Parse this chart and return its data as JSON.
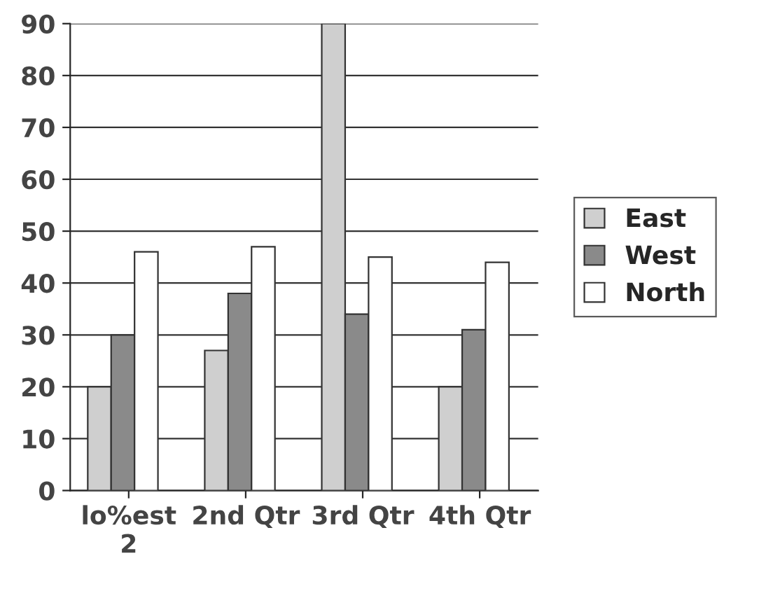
{
  "chart_data": {
    "type": "bar",
    "categories": [
      "lo%est\n2",
      "2nd Qtr",
      "3rd Qtr",
      "4th Qtr"
    ],
    "series": [
      {
        "name": "East",
        "color": "#cfcfcf",
        "values": [
          20,
          27,
          90,
          20
        ]
      },
      {
        "name": "West",
        "color": "#8a8a8a",
        "values": [
          30,
          38,
          34,
          31
        ]
      },
      {
        "name": "North",
        "color": "#ffffff",
        "values": [
          46,
          47,
          45,
          44
        ]
      }
    ],
    "ylim": [
      0,
      90
    ],
    "yticks": [
      0,
      10,
      20,
      30,
      40,
      50,
      60,
      70,
      80,
      90
    ],
    "grid": "y",
    "legend": "right"
  }
}
